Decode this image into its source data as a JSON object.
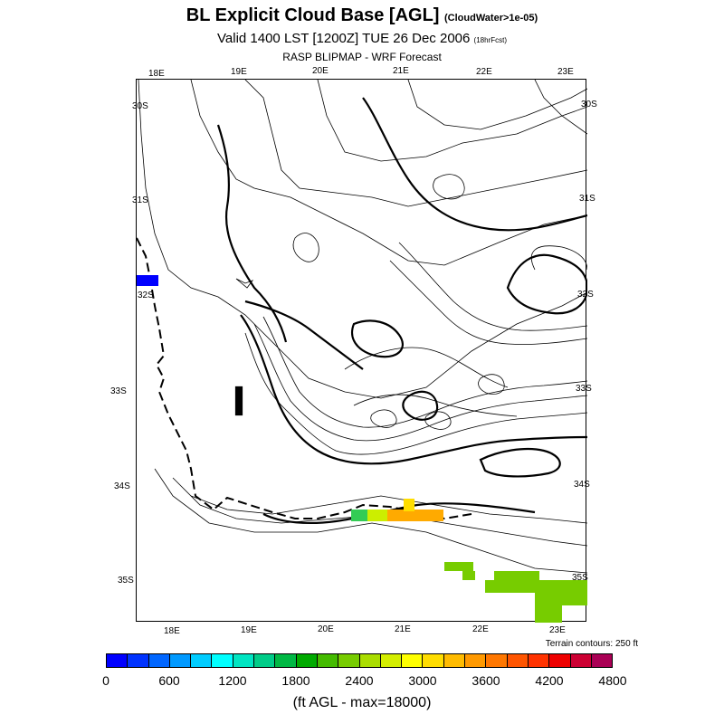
{
  "title": {
    "main": "BL Explicit Cloud Base [AGL]",
    "note": "(CloudWater>1e-05)"
  },
  "subtitle": {
    "main": "Valid 1400 LST [1200Z] TUE 26 Dec 2006",
    "note": "(18hrFcst)"
  },
  "source": "RASP BLIPMAP - WRF Forecast",
  "map": {
    "top_longitudes": [
      "18E",
      "19E",
      "20E",
      "21E",
      "22E",
      "23E"
    ],
    "bottom_longitudes": [
      "18E",
      "19E",
      "20E",
      "21E",
      "22E",
      "23E"
    ],
    "left_latitudes": [
      "30S",
      "31S",
      "32S",
      "33S",
      "34S",
      "35S"
    ],
    "right_latitudes": [
      "30S",
      "31S",
      "32S",
      "33S",
      "34S",
      "35S"
    ],
    "terrain_note": "Terrain contours: 250 ft"
  },
  "colorbar": {
    "colors": [
      "#0000ff",
      "#0033ff",
      "#0066ff",
      "#0099ff",
      "#00ccff",
      "#00ffff",
      "#00e5c2",
      "#00cc88",
      "#00b844",
      "#00aa00",
      "#44bb00",
      "#77cc00",
      "#aadd00",
      "#d4ee00",
      "#ffff00",
      "#ffdd00",
      "#ffbb00",
      "#ff9900",
      "#ff7700",
      "#ff5500",
      "#ff3300",
      "#ee0000",
      "#cc0033",
      "#aa0055"
    ],
    "tick_labels": [
      "0",
      "600",
      "1200",
      "1800",
      "2400",
      "3000",
      "3600",
      "4200",
      "4800"
    ],
    "units": "(ft AGL - max=18000)"
  }
}
